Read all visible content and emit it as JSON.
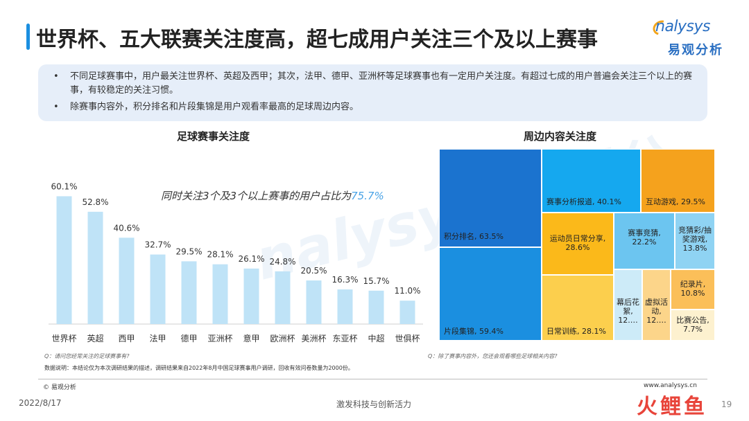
{
  "header": {
    "title": "世界杯、五大联赛关注度高，超七成用户关注三个及以上赛事",
    "logo_en": "nalysys",
    "logo_cn": "易观分析"
  },
  "summary": {
    "bullets": [
      "不同足球赛事中，用户最关注世界杯、英超及西甲；其次，法甲、德甲、亚洲杯等足球赛事也有一定用户关注度。有超过七成的用户普遍会关注三个以上的赛事，有较稳定的关注习惯。",
      "除赛事内容外，积分排名和片段集锦是用户观看率最高的足球周边内容。"
    ]
  },
  "watermark": "nalysys 易观分",
  "chart_data": [
    {
      "type": "bar",
      "title": "足球赛事关注度",
      "categories": [
        "世界杯",
        "英超",
        "西甲",
        "法甲",
        "德甲",
        "亚洲杯",
        "意甲",
        "欧洲杯",
        "美洲杯",
        "东亚杯",
        "中超",
        "世俱杯"
      ],
      "values": [
        60.1,
        52.8,
        40.6,
        32.7,
        29.5,
        28.1,
        26.1,
        24.8,
        20.5,
        16.3,
        15.7,
        11.0
      ],
      "value_labels": [
        "60.1%",
        "52.8%",
        "40.6%",
        "32.7%",
        "29.5%",
        "28.1%",
        "26.1%",
        "24.8%",
        "20.5%",
        "16.3%",
        "15.7%",
        "11.0%"
      ],
      "ylim": [
        0,
        70
      ],
      "annotation_prefix": "同时关注3个及3个以上赛事的用户占比为",
      "annotation_value": "75.7%",
      "question": "Q：请问您经常关注的足球赛事有?",
      "bar_color": "#bfe3f7"
    },
    {
      "type": "treemap",
      "title": "周边内容关注度",
      "items": [
        {
          "name": "积分排名",
          "value": 63.5,
          "label": "积分排名, 63.5%",
          "color": "#1b73cf"
        },
        {
          "name": "片段集锦",
          "value": 59.4,
          "label": "片段集锦, 59.4%",
          "color": "#1b8fe0"
        },
        {
          "name": "赛事分析报道",
          "value": 40.1,
          "label": "赛事分析报道, 40.1%",
          "color": "#15a8ef"
        },
        {
          "name": "互动游戏",
          "value": 29.5,
          "label": "互动游戏, 29.5%",
          "color": "#f5a21d"
        },
        {
          "name": "运动员日常分享",
          "value": 28.6,
          "label": "运动员日常分享, 28.6%",
          "color": "#fbb91a"
        },
        {
          "name": "日常训练",
          "value": 28.1,
          "label": "日常训练, 28.1%",
          "color": "#fccf4d"
        },
        {
          "name": "赛事竞猜",
          "value": 22.2,
          "label": "赛事竞猜, 22.2%",
          "color": "#6cc5f0"
        },
        {
          "name": "竞猜彩/抽奖游戏",
          "value": 13.8,
          "label": "竞猜彩/抽奖游戏, 13.8%",
          "color": "#8fd3f3"
        },
        {
          "name": "幕后花絮",
          "value": 12.0,
          "label": "幕后花絮, 12.…",
          "color": "#cdebf8"
        },
        {
          "name": "虚拟活动",
          "value": 12.0,
          "label": "虚拟活动, 12.…",
          "color": "#fcd58a"
        },
        {
          "name": "纪录片",
          "value": 10.8,
          "label": "纪录片, 10.8%",
          "color": "#fbbf59"
        },
        {
          "name": "比赛公告",
          "value": 7.7,
          "label": "比赛公告, 7.7%",
          "color": "#fdf1cf"
        }
      ],
      "question": "Q：除了赛事内容外，您还会观看哪些足球相关内容?"
    }
  ],
  "footer": {
    "source": "数据说明：本结论仅为本次调研结果的描述，调研结果来自2022年8月中国足球赛事用户调研，回收有效问卷数量为2000份。",
    "copyright": "© 易观分析",
    "website": "www.analysys.cn",
    "date": "2022/8/17",
    "slogan": "激发科技与创新活力",
    "page_number": "19",
    "brand_mark": "火鲤鱼"
  }
}
